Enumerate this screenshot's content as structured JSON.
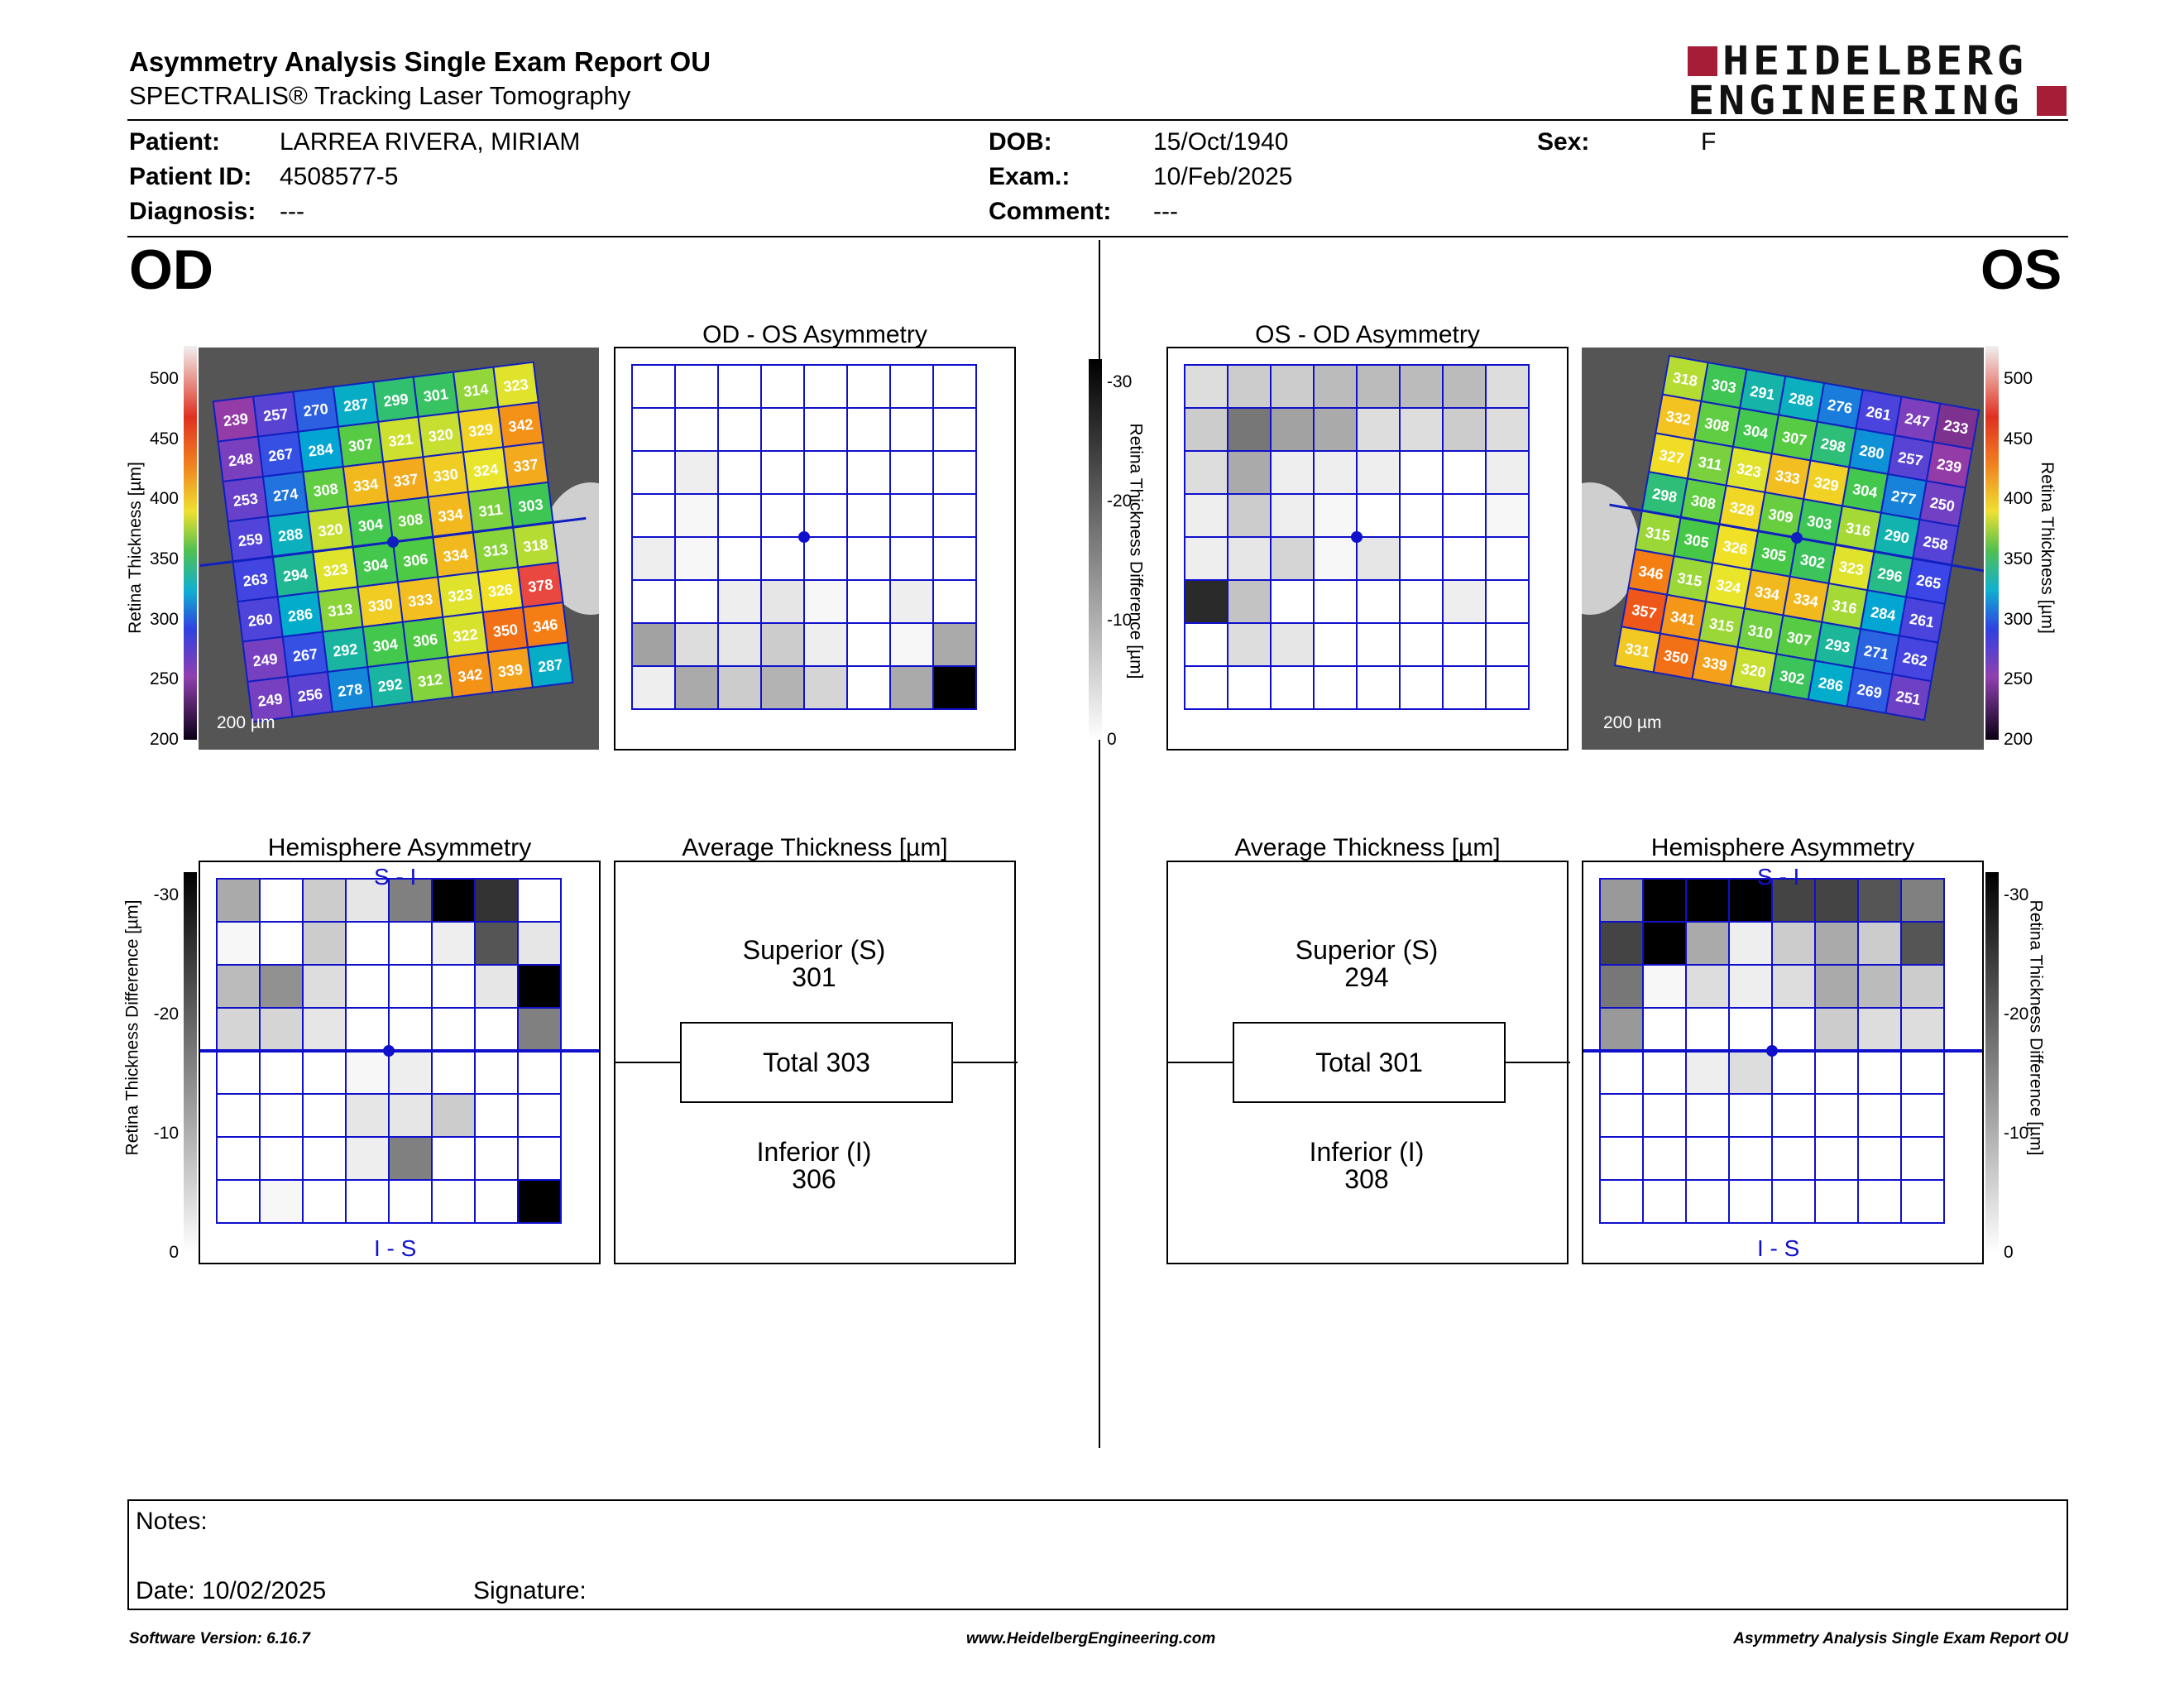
{
  "header": {
    "title": "Asymmetry Analysis Single Exam Report OU",
    "subtitle": "SPECTRALIS® Tracking Laser Tomography",
    "logo_line1": "HEIDELBERG",
    "logo_line2": "ENGINEERING",
    "brand_color": "#a51d36"
  },
  "patient": {
    "patient_label": "Patient:",
    "patient_value": "LARREA RIVERA, MIRIAM",
    "id_label": "Patient ID:",
    "id_value": "4508577-5",
    "diagnosis_label": "Diagnosis:",
    "diagnosis_value": "---",
    "dob_label": "DOB:",
    "dob_value": "15/Oct/1940",
    "exam_label": "Exam.:",
    "exam_value": "10/Feb/2025",
    "comment_label": "Comment:",
    "comment_value": "---",
    "sex_label": "Sex:",
    "sex_value": "F"
  },
  "od": {
    "eye_label": "OD",
    "asym_title": "OD - OS Asymmetry",
    "hemi_title": "Hemisphere Asymmetry",
    "avg_title": "Average Thickness [µm]",
    "superior_label": "Superior (S)",
    "superior_value": "301",
    "total_text": "Total 303",
    "inferior_label": "Inferior (I)",
    "inferior_value": "306",
    "scale_label": "200 µm",
    "hemi_top": "S - I",
    "hemi_bottom": "I - S",
    "thickness_grid": [
      [
        239,
        257,
        270,
        287,
        299,
        301,
        314,
        323
      ],
      [
        248,
        267,
        284,
        307,
        321,
        320,
        329,
        342
      ],
      [
        253,
        274,
        308,
        334,
        337,
        330,
        324,
        337
      ],
      [
        259,
        288,
        320,
        304,
        308,
        334,
        311,
        303
      ],
      [
        263,
        294,
        323,
        304,
        306,
        334,
        313,
        318
      ],
      [
        260,
        286,
        313,
        330,
        333,
        323,
        326,
        378
      ],
      [
        249,
        267,
        292,
        304,
        306,
        322,
        350,
        346
      ],
      [
        249,
        256,
        278,
        292,
        312,
        342,
        339,
        287
      ]
    ],
    "asym_grid": [
      [
        0,
        0,
        0,
        0,
        0,
        0,
        0,
        0
      ],
      [
        0,
        0,
        0,
        0,
        0,
        0,
        0,
        0
      ],
      [
        0,
        2,
        0,
        0,
        0,
        0,
        0,
        0
      ],
      [
        0,
        1,
        0,
        0,
        0,
        0,
        0,
        0
      ],
      [
        2,
        1,
        0,
        0,
        0,
        0,
        0,
        0
      ],
      [
        0,
        0,
        2,
        3,
        1,
        0,
        2,
        0
      ],
      [
        11,
        4,
        3,
        6,
        2,
        0,
        1,
        10
      ],
      [
        2,
        10,
        6,
        9,
        5,
        0,
        10,
        30
      ]
    ],
    "hemi_grid": [
      [
        10,
        0,
        6,
        3,
        15,
        30,
        24,
        0
      ],
      [
        1,
        0,
        6,
        0,
        0,
        2,
        20,
        3
      ],
      [
        8,
        13,
        4,
        0,
        0,
        0,
        3,
        30
      ],
      [
        5,
        5,
        3,
        0,
        0,
        0,
        0,
        15
      ],
      [
        0,
        0,
        0,
        1,
        2,
        0,
        0,
        0
      ],
      [
        0,
        0,
        0,
        3,
        3,
        6,
        0,
        0
      ],
      [
        0,
        0,
        0,
        2,
        15,
        0,
        0,
        0
      ],
      [
        0,
        1,
        0,
        0,
        0,
        0,
        0,
        30
      ]
    ]
  },
  "os": {
    "eye_label": "OS",
    "asym_title": "OS - OD Asymmetry",
    "hemi_title": "Hemisphere Asymmetry",
    "avg_title": "Average Thickness [µm]",
    "superior_label": "Superior (S)",
    "superior_value": "294",
    "total_text": "Total 301",
    "inferior_label": "Inferior (I)",
    "inferior_value": "308",
    "scale_label": "200 µm",
    "hemi_top": "S - I",
    "hemi_bottom": "I - S",
    "thickness_grid": [
      [
        318,
        303,
        291,
        288,
        276,
        261,
        247,
        233
      ],
      [
        332,
        308,
        304,
        307,
        298,
        280,
        257,
        239
      ],
      [
        327,
        311,
        323,
        333,
        329,
        304,
        277,
        250
      ],
      [
        298,
        308,
        328,
        309,
        303,
        316,
        290,
        258
      ],
      [
        315,
        305,
        326,
        305,
        302,
        323,
        296,
        265
      ],
      [
        346,
        315,
        324,
        334,
        334,
        316,
        284,
        261
      ],
      [
        357,
        341,
        315,
        310,
        307,
        293,
        271,
        262
      ],
      [
        331,
        350,
        339,
        320,
        302,
        286,
        269,
        251
      ]
    ],
    "asym_grid": [
      [
        4,
        6,
        6,
        8,
        8,
        8,
        8,
        4
      ],
      [
        6,
        16,
        11,
        10,
        4,
        4,
        6,
        4
      ],
      [
        4,
        10,
        2,
        2,
        2,
        0,
        0,
        2
      ],
      [
        2,
        6,
        2,
        1,
        0,
        0,
        0,
        1
      ],
      [
        2,
        3,
        5,
        1,
        3,
        0,
        0,
        0
      ],
      [
        25,
        7,
        0,
        0,
        0,
        0,
        2,
        0
      ],
      [
        0,
        4,
        3,
        0,
        0,
        0,
        0,
        0
      ],
      [
        0,
        0,
        0,
        0,
        0,
        0,
        0,
        0
      ]
    ],
    "hemi_grid": [
      [
        12,
        30,
        30,
        30,
        22,
        22,
        20,
        15
      ],
      [
        22,
        30,
        10,
        2,
        6,
        10,
        6,
        20
      ],
      [
        16,
        1,
        4,
        2,
        4,
        10,
        8,
        6
      ],
      [
        12,
        0,
        0,
        0,
        0,
        6,
        4,
        4
      ],
      [
        0,
        0,
        2,
        4,
        0,
        0,
        0,
        0
      ],
      [
        0,
        0,
        0,
        0,
        0,
        0,
        0,
        0
      ],
      [
        0,
        0,
        0,
        0,
        0,
        0,
        0,
        0
      ],
      [
        0,
        0,
        0,
        0,
        0,
        0,
        0,
        0
      ]
    ]
  },
  "scales": {
    "thickness_label": "Retina Thickness [µm]",
    "thickness_ticks": [
      "500",
      "450",
      "400",
      "350",
      "300",
      "250",
      "200"
    ],
    "diff_label": "Retina Thickness Difference [µm]",
    "diff_ticks": [
      "-30",
      "-20",
      "-10",
      "0"
    ]
  },
  "notes": {
    "notes_label": "Notes:",
    "date_text": "Date: 10/02/2025",
    "signature_label": "Signature:"
  },
  "footer": {
    "left": "Software Version: 6.16.7",
    "center": "www.HeidelbergEngineering.com",
    "right": "Asymmetry Analysis Single Exam Report OU"
  },
  "colors": {
    "grid_blue": "#1010cc",
    "brand": "#a51d36"
  }
}
